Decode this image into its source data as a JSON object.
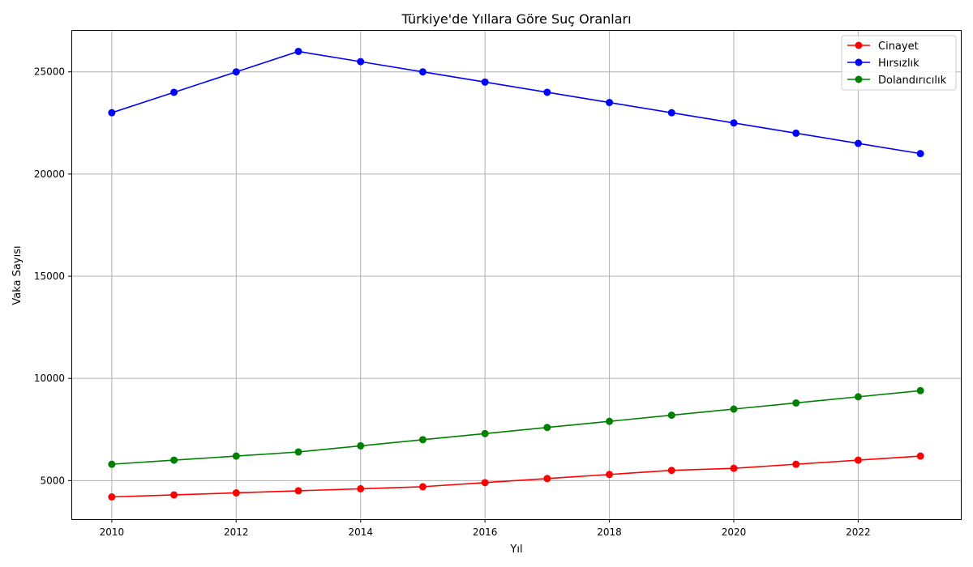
{
  "chart_data": {
    "type": "line",
    "title": "Türkiye'de Yıllara Göre Suç Oranları",
    "xlabel": "Yıl",
    "ylabel": "Vaka Sayısı",
    "x": [
      2010,
      2011,
      2012,
      2013,
      2014,
      2015,
      2016,
      2017,
      2018,
      2019,
      2020,
      2021,
      2022,
      2023
    ],
    "x_ticks": [
      2010,
      2012,
      2014,
      2016,
      2018,
      2020,
      2022
    ],
    "y_ticks": [
      5000,
      10000,
      15000,
      20000,
      25000
    ],
    "xlim": [
      2009.35,
      2023.65
    ],
    "ylim": [
      3110,
      27050
    ],
    "grid": true,
    "legend_position": "top-right",
    "series": [
      {
        "name": "Cinayet",
        "color": "#ff0000",
        "values": [
          4200,
          4300,
          4400,
          4500,
          4600,
          4700,
          4900,
          5100,
          5300,
          5500,
          5600,
          5800,
          6000,
          6200
        ]
      },
      {
        "name": "Hırsızlık",
        "color": "#0000ff",
        "values": [
          23000,
          24000,
          25000,
          26000,
          25500,
          25000,
          24500,
          24000,
          23500,
          23000,
          22500,
          22000,
          21500,
          21000
        ]
      },
      {
        "name": "Dolandırıcılık",
        "color": "#008000",
        "values": [
          5800,
          6000,
          6200,
          6400,
          6700,
          7000,
          7300,
          7600,
          7900,
          8200,
          8500,
          8800,
          9100,
          9400
        ]
      }
    ]
  }
}
